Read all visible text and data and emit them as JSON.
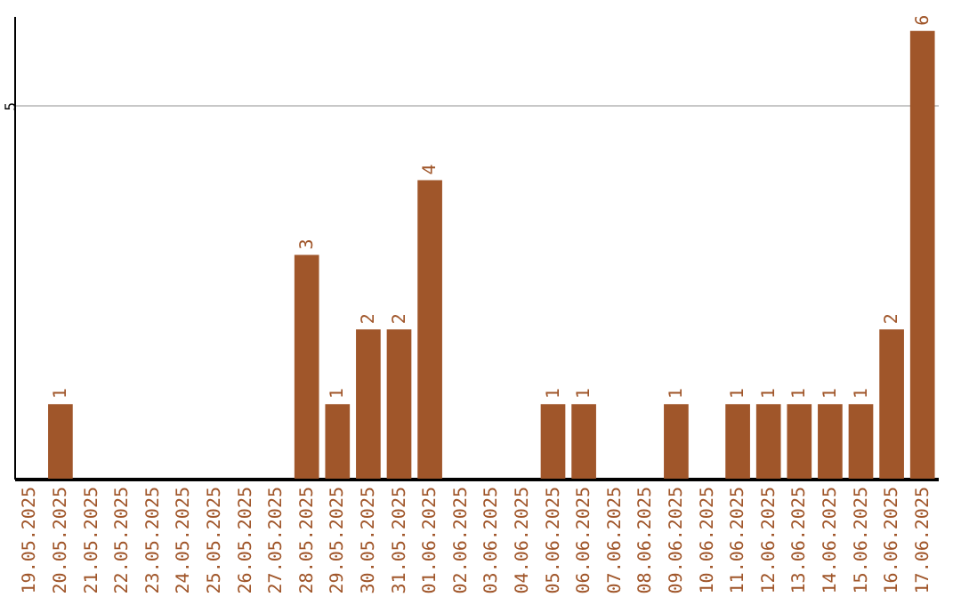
{
  "chart_data": {
    "type": "bar",
    "categories": [
      "19.05.2025",
      "20.05.2025",
      "21.05.2025",
      "22.05.2025",
      "23.05.2025",
      "24.05.2025",
      "25.05.2025",
      "26.05.2025",
      "27.05.2025",
      "28.05.2025",
      "29.05.2025",
      "30.05.2025",
      "31.05.2025",
      "01.06.2025",
      "02.06.2025",
      "03.06.2025",
      "04.06.2025",
      "05.06.2025",
      "06.06.2025",
      "07.06.2025",
      "08.06.2025",
      "09.06.2025",
      "10.06.2025",
      "11.06.2025",
      "12.06.2025",
      "13.06.2025",
      "14.06.2025",
      "15.06.2025",
      "16.06.2025",
      "17.06.2025"
    ],
    "values": [
      0,
      1,
      0,
      0,
      0,
      0,
      0,
      0,
      0,
      3,
      1,
      2,
      2,
      4,
      0,
      0,
      0,
      1,
      1,
      0,
      0,
      1,
      0,
      1,
      1,
      1,
      1,
      1,
      2,
      6
    ],
    "value_labels": [
      null,
      "1",
      null,
      null,
      null,
      null,
      null,
      null,
      null,
      "3",
      "1",
      "2",
      "2",
      "4",
      null,
      null,
      null,
      "1",
      "1",
      null,
      null,
      "1",
      null,
      "1",
      "1",
      "1",
      "1",
      "1",
      "2",
      "6"
    ],
    "color": "#a0562a",
    "ylim": [
      0,
      6.2
    ],
    "yticks": [
      5
    ],
    "grid": "y"
  }
}
